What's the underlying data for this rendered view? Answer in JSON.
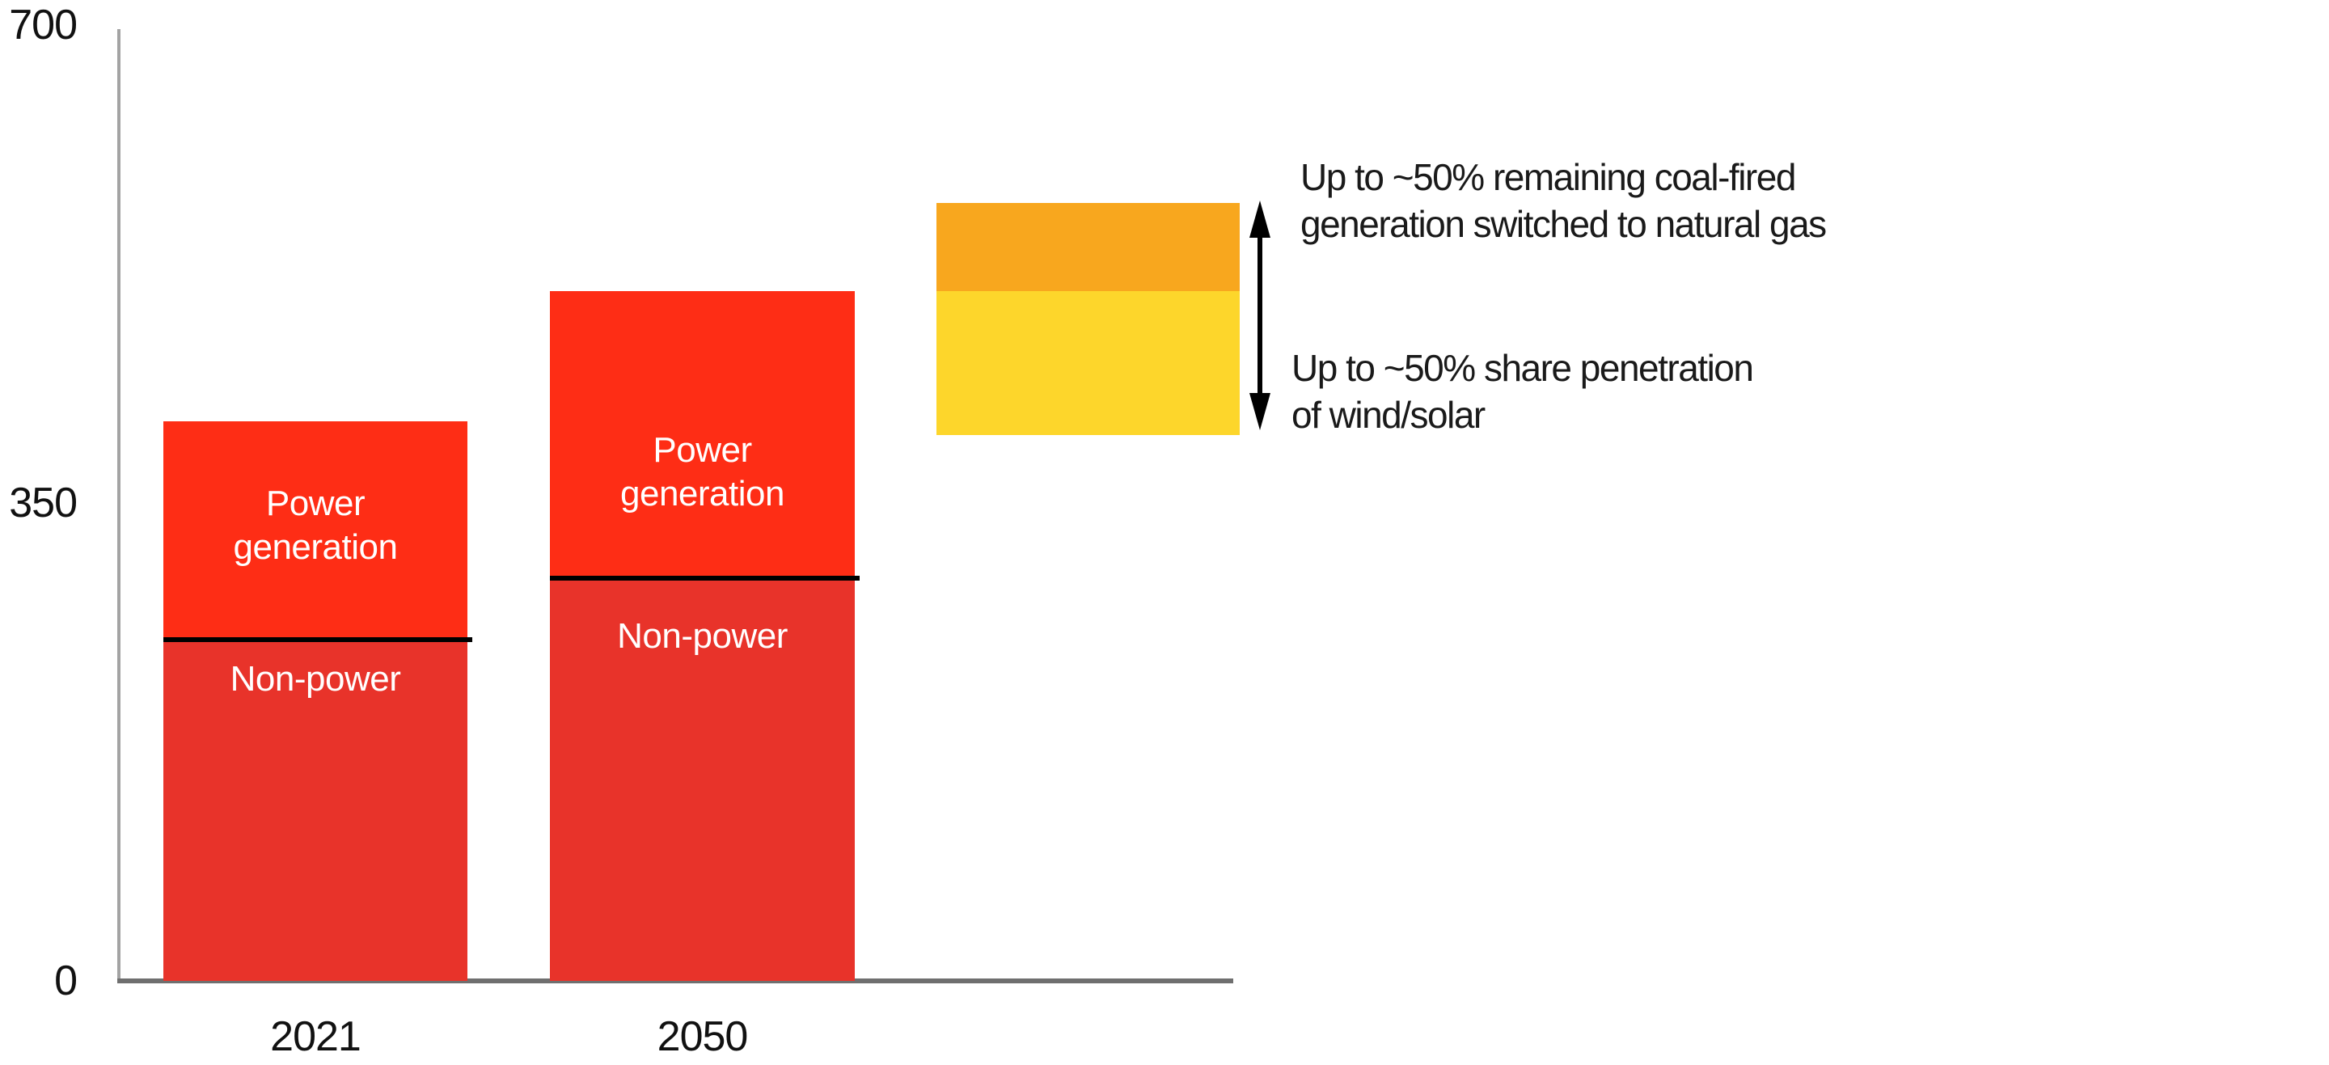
{
  "chart_data": {
    "type": "bar",
    "title": "",
    "categories": [
      "2021",
      "2050"
    ],
    "series": [
      {
        "name": "Non-power",
        "values": [
          250,
          295
        ],
        "color": "#e8332a"
      },
      {
        "name": "Power generation",
        "values": [
          160,
          210
        ],
        "color": "#fe2d15"
      }
    ],
    "totals": [
      410,
      505
    ],
    "bar_labels": {
      "power": [
        "Power",
        "generation"
      ],
      "non_power": "Non-power"
    },
    "floating_bar": {
      "segments": [
        {
          "name": "wind-solar-penetration",
          "from": 400,
          "to": 505,
          "color": "#fdd62b"
        },
        {
          "name": "coal-to-gas-switching",
          "from": 505,
          "to": 570,
          "color": "#f8a71e"
        }
      ]
    },
    "ylim": [
      0,
      700
    ],
    "yticks": [
      700,
      350,
      0
    ],
    "ytick_labels": [
      "700",
      "350",
      "0"
    ],
    "grid": false,
    "legend": "none",
    "annotations": [
      {
        "lines": [
          "Up to ~50% remaining coal-fired",
          "generation switched to natural gas"
        ]
      },
      {
        "lines": [
          "Up to ~50% share penetration",
          "of wind/solar"
        ]
      }
    ],
    "colors": {
      "power_red": "#fe2d15",
      "non_power_red": "#e8332a",
      "gas_switch_orange": "#f8a71e",
      "wind_solar_yellow": "#fdd62b",
      "divider_black": "#000000",
      "y_axis_gray": "#a3a3a3",
      "x_axis_gray": "#6f6f6f",
      "text": "#1a1a1a"
    }
  }
}
